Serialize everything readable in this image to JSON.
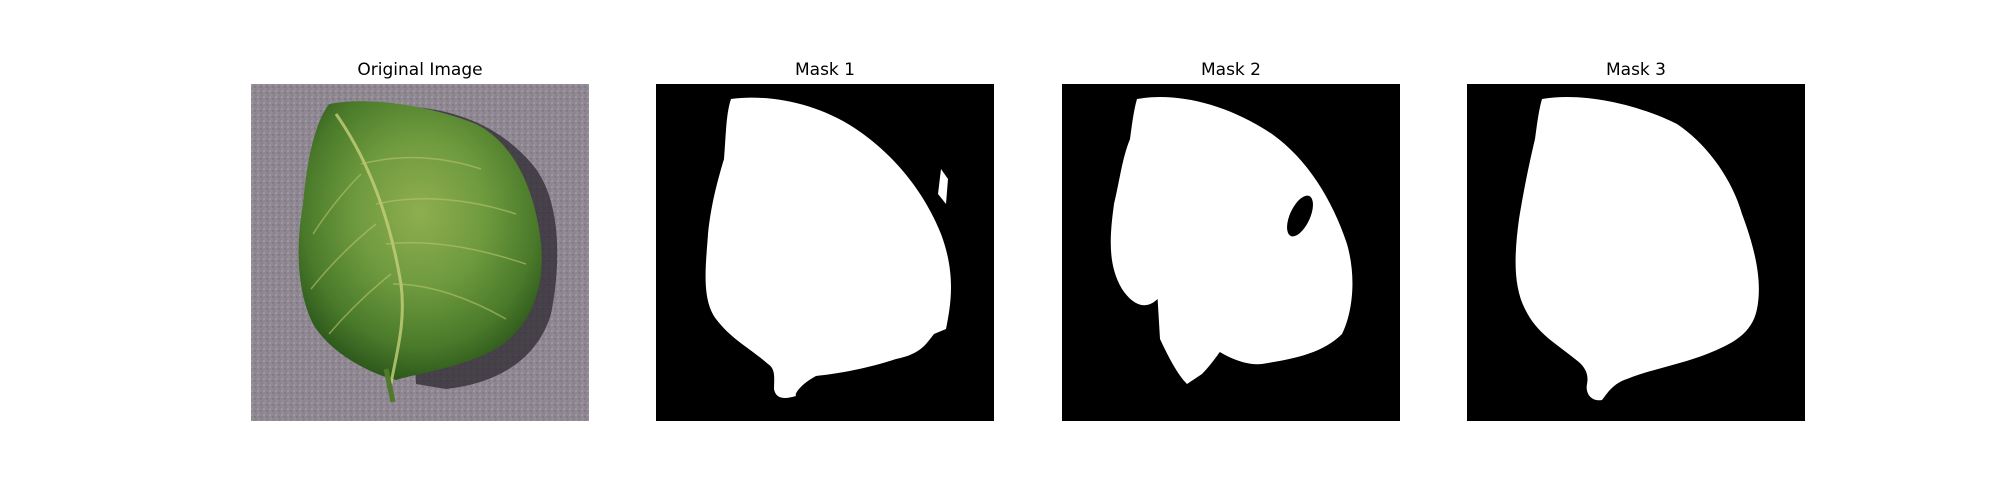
{
  "panels": [
    {
      "title": "Original Image"
    },
    {
      "title": "Mask 1"
    },
    {
      "title": "Mask 2"
    },
    {
      "title": "Mask 3"
    }
  ],
  "colors": {
    "background": "#ffffff",
    "mask_background": "#000000",
    "mask_foreground": "#ffffff",
    "surface_gray": "#8f8791",
    "leaf_dark_green": "#3f6a23",
    "leaf_mid_green": "#6f9a3f",
    "leaf_light_green": "#a4b85a"
  }
}
